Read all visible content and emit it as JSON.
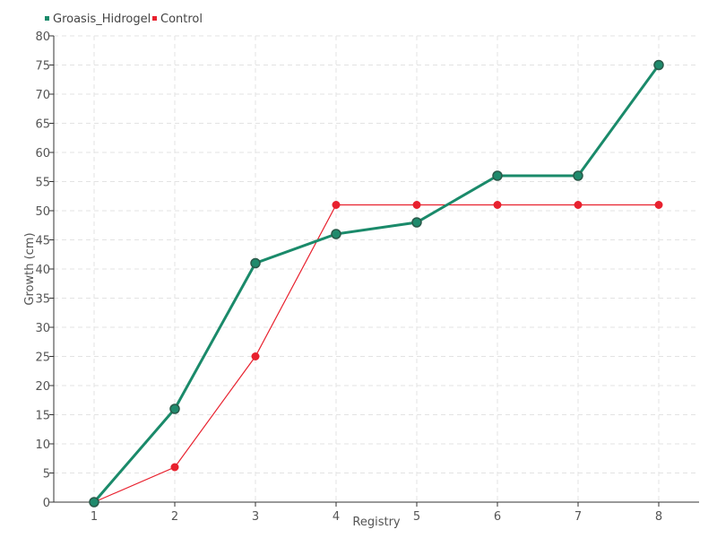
{
  "chart_data": {
    "type": "line",
    "title": "",
    "xlabel": "Registry",
    "ylabel": "Growth (cm)",
    "categories": [
      "1",
      "2",
      "3",
      "4",
      "5",
      "6",
      "7",
      "8"
    ],
    "ylim": [
      0,
      80
    ],
    "yticks": [
      "0",
      "5",
      "10",
      "15",
      "20",
      "25",
      "30",
      "35",
      "40",
      "45",
      "50",
      "55",
      "60",
      "65",
      "70",
      "75",
      "80"
    ],
    "grid": true,
    "legend": "top-left",
    "series": [
      {
        "name": "Groasis_Hidrogel",
        "color": "#1a8a6a",
        "values": [
          0,
          16,
          41,
          46,
          48,
          56,
          56,
          75
        ]
      },
      {
        "name": "Control",
        "color": "#e8212e",
        "values": [
          0,
          6,
          25,
          51,
          51,
          51,
          51,
          51
        ]
      }
    ]
  }
}
